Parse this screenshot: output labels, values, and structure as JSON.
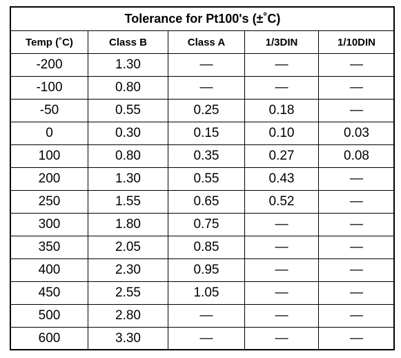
{
  "table": {
    "title": "Tolerance for Pt100's (±˚C)",
    "header": [
      "Temp (˚C)",
      "Class B",
      "Class A",
      "1/3DIN",
      "1/10DIN"
    ],
    "rows": [
      [
        "-200",
        "1.30",
        "—",
        "—",
        "—"
      ],
      [
        "-100",
        "0.80",
        "—",
        "—",
        "—"
      ],
      [
        "-50",
        "0.55",
        "0.25",
        "0.18",
        "—"
      ],
      [
        "0",
        "0.30",
        "0.15",
        "0.10",
        "0.03"
      ],
      [
        "100",
        "0.80",
        "0.35",
        "0.27",
        "0.08"
      ],
      [
        "200",
        "1.30",
        "0.55",
        "0.43",
        "—"
      ],
      [
        "250",
        "1.55",
        "0.65",
        "0.52",
        "—"
      ],
      [
        "300",
        "1.80",
        "0.75",
        "—",
        "—"
      ],
      [
        "350",
        "2.05",
        "0.85",
        "—",
        "—"
      ],
      [
        "400",
        "2.30",
        "0.95",
        "—",
        "—"
      ],
      [
        "450",
        "2.55",
        "1.05",
        "—",
        "—"
      ],
      [
        "500",
        "2.80",
        "—",
        "—",
        "—"
      ],
      [
        "600",
        "3.30",
        "—",
        "—",
        "—"
      ]
    ]
  }
}
